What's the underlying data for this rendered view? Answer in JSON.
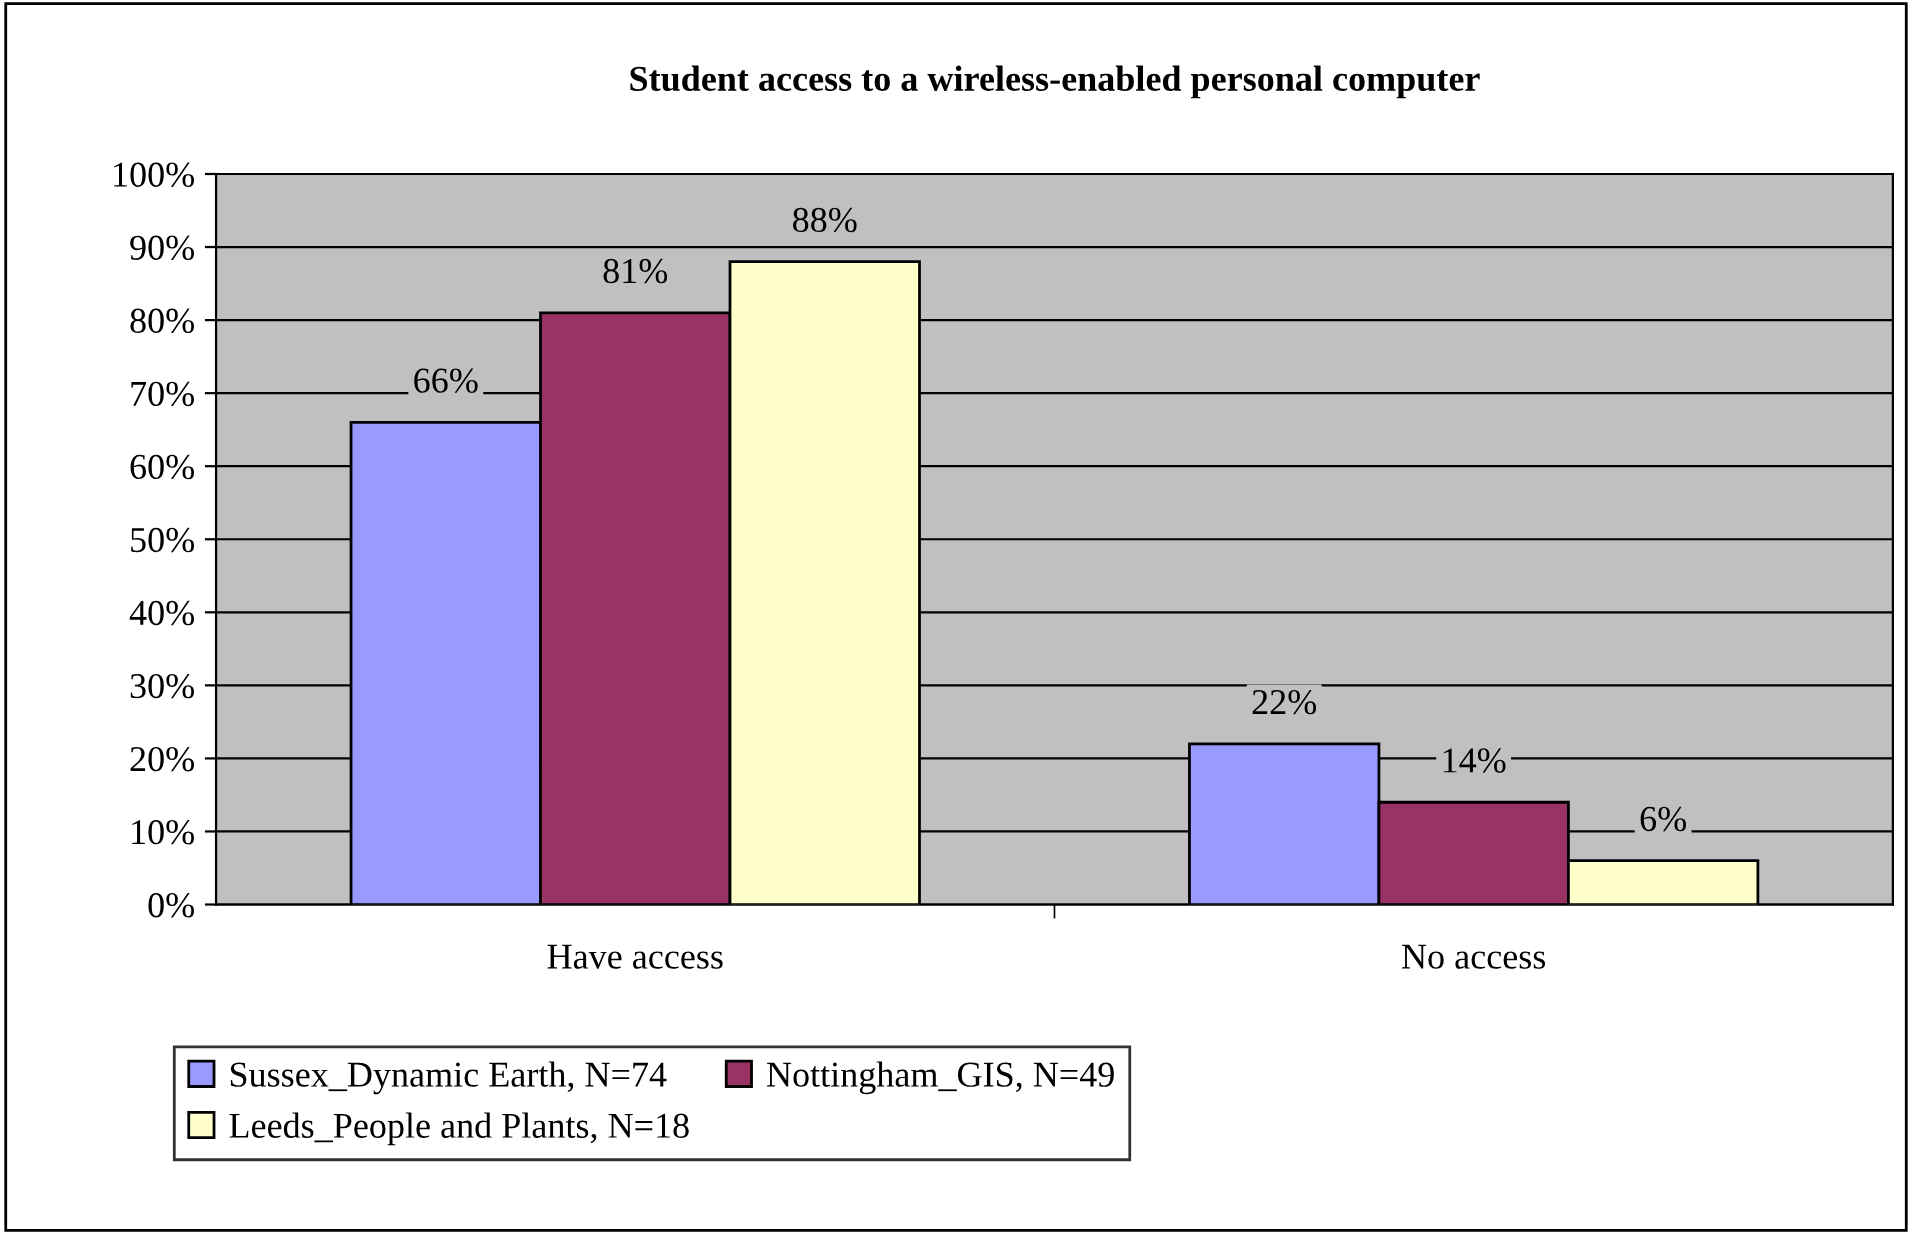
{
  "chart_data": {
    "type": "bar",
    "title": "Student access to a wireless-enabled personal computer",
    "categories": [
      "Have access",
      "No access"
    ],
    "series": [
      {
        "name": "Sussex_Dynamic Earth, N=74",
        "color": "#9999ff",
        "values": [
          66,
          22
        ],
        "value_labels": [
          "66%",
          "22%"
        ]
      },
      {
        "name": "Nottingham_GIS, N=49",
        "color": "#993366",
        "values": [
          81,
          14
        ],
        "value_labels": [
          "81%",
          "14%"
        ]
      },
      {
        "name": "Leeds_People and Plants, N=18",
        "color": "#ffffcc",
        "values": [
          88,
          6
        ],
        "value_labels": [
          "88%",
          "6%"
        ]
      }
    ],
    "ylim": [
      0,
      100
    ],
    "yticks": [
      {
        "value": 0,
        "label": "0%"
      },
      {
        "value": 10,
        "label": "10%"
      },
      {
        "value": 20,
        "label": "20%"
      },
      {
        "value": 30,
        "label": "30%"
      },
      {
        "value": 40,
        "label": "40%"
      },
      {
        "value": 50,
        "label": "50%"
      },
      {
        "value": 60,
        "label": "60%"
      },
      {
        "value": 70,
        "label": "70%"
      },
      {
        "value": 80,
        "label": "80%"
      },
      {
        "value": 90,
        "label": "90%"
      },
      {
        "value": 100,
        "label": "100%"
      }
    ],
    "grid": "y",
    "legend": "bottom"
  }
}
